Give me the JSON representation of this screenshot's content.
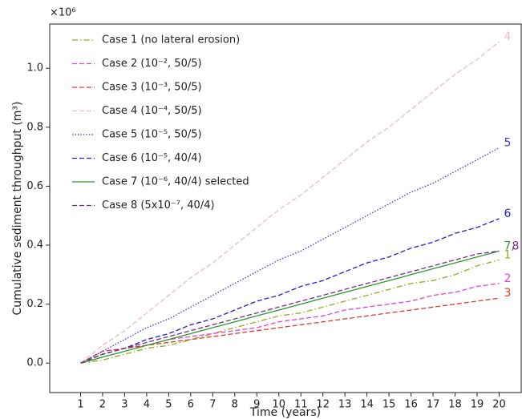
{
  "chart_data": {
    "type": "line",
    "offset_text": "×10⁶",
    "xlabel": "Time (years)",
    "ylabel": "Cumulative sediment throughput (m³)",
    "x": [
      1,
      2,
      3,
      4,
      5,
      6,
      7,
      8,
      9,
      10,
      11,
      12,
      13,
      14,
      15,
      16,
      17,
      18,
      19,
      20
    ],
    "xlim": [
      -0.4,
      21.0
    ],
    "xticks": [
      1,
      2,
      3,
      4,
      5,
      6,
      7,
      8,
      9,
      10,
      11,
      12,
      13,
      14,
      15,
      16,
      17,
      18,
      19,
      20
    ],
    "ylim": [
      -0.1,
      1.15
    ],
    "yticks": [
      {
        "value": 0,
        "label": "0.0"
      },
      0.2,
      0.4,
      0.6,
      0.8,
      {
        "value": 1,
        "label": "1.0"
      }
    ],
    "legend": "upper left",
    "series": [
      {
        "name": "Case 1 (no lateral erosion)",
        "color": "#9aa81e",
        "dash": "dashdot",
        "end_label": "1",
        "values": [
          0,
          0.01,
          0.03,
          0.05,
          0.06,
          0.08,
          0.1,
          0.12,
          0.14,
          0.16,
          0.17,
          0.19,
          0.21,
          0.23,
          0.25,
          0.27,
          0.28,
          0.3,
          0.33,
          0.35
        ]
      },
      {
        "name": "Case 2 (10⁻², 50/5)",
        "color": "#e040e0",
        "dash": "dashed",
        "end_label": "2",
        "values": [
          0,
          0.03,
          0.05,
          0.06,
          0.08,
          0.09,
          0.1,
          0.11,
          0.12,
          0.14,
          0.15,
          0.16,
          0.18,
          0.19,
          0.2,
          0.21,
          0.23,
          0.24,
          0.26,
          0.27
        ]
      },
      {
        "name": "Case 3 (10⁻³, 50/5)",
        "color": "#e03b2a",
        "dash": "dashed",
        "end_label": "3",
        "values": [
          0,
          0.04,
          0.05,
          0.06,
          0.07,
          0.08,
          0.09,
          0.1,
          0.11,
          0.12,
          0.13,
          0.14,
          0.15,
          0.16,
          0.17,
          0.18,
          0.19,
          0.2,
          0.21,
          0.22
        ]
      },
      {
        "name": "Case 4 (10⁻⁴, 50/5)",
        "color": "#f4b8c0",
        "dash": "dashed",
        "end_label": "4",
        "values": [
          0,
          0.06,
          0.11,
          0.17,
          0.23,
          0.29,
          0.34,
          0.4,
          0.46,
          0.52,
          0.57,
          0.63,
          0.69,
          0.75,
          0.8,
          0.86,
          0.92,
          0.98,
          1.03,
          1.09
        ]
      },
      {
        "name": "Case 5 (10⁻⁵, 50/5)",
        "color": "#3a3ad0",
        "dash": "dotted",
        "end_label": "5",
        "values": [
          0,
          0.04,
          0.08,
          0.12,
          0.15,
          0.19,
          0.23,
          0.27,
          0.31,
          0.35,
          0.38,
          0.42,
          0.46,
          0.5,
          0.54,
          0.58,
          0.61,
          0.65,
          0.69,
          0.73
        ]
      },
      {
        "name": "Case 6  (10⁻⁵, 40/4)",
        "color": "#2020d0",
        "dash": "dashed",
        "end_label": "6",
        "values": [
          0,
          0.03,
          0.05,
          0.08,
          0.1,
          0.13,
          0.15,
          0.18,
          0.21,
          0.23,
          0.26,
          0.28,
          0.31,
          0.34,
          0.36,
          0.39,
          0.41,
          0.44,
          0.46,
          0.49
        ]
      },
      {
        "name": "Case 7  (10⁻⁶, 40/4) selected",
        "color": "#2a9a2a",
        "dash": "solid",
        "end_label": "7,",
        "values": [
          0,
          0.02,
          0.04,
          0.06,
          0.08,
          0.1,
          0.12,
          0.14,
          0.16,
          0.18,
          0.2,
          0.22,
          0.24,
          0.26,
          0.28,
          0.3,
          0.32,
          0.34,
          0.36,
          0.38
        ]
      },
      {
        "name": "Case 8  (5x10⁻⁷, 40/4)",
        "color": "#7a2a8a",
        "dash": "dashed",
        "end_label": "8",
        "values": [
          0,
          0.03,
          0.05,
          0.07,
          0.09,
          0.11,
          0.13,
          0.15,
          0.17,
          0.19,
          0.21,
          0.23,
          0.25,
          0.27,
          0.29,
          0.31,
          0.33,
          0.35,
          0.37,
          0.38
        ]
      }
    ]
  }
}
